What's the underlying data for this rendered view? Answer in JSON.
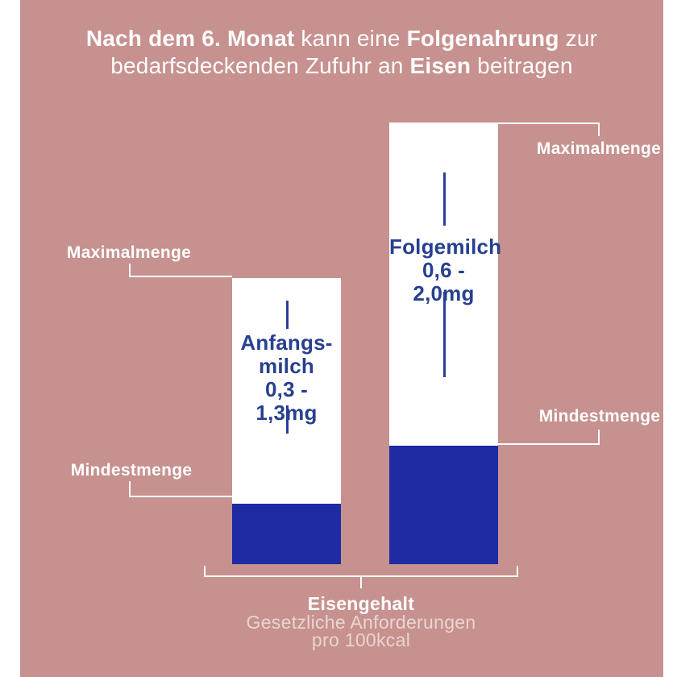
{
  "colors": {
    "panel_background": "#c6918e",
    "page_margin": "#ffffff",
    "bar_background": "#ffffff",
    "bar_fill_blue": "#1e2ba3",
    "bar_text_blue": "#27408f",
    "callout_text": "#ffffff",
    "footer_faded_text": "rgba(255,255,255,0.62)"
  },
  "title": {
    "l1_bold1": "Nach dem 6. Monat",
    "l1_reg1": " kann eine ",
    "l1_bold2": "Folgenahrung",
    "l1_reg2": " zur",
    "l2_reg1": "bedarfsdeckenden Zufuhr an ",
    "l2_bold1": "Eisen",
    "l2_reg2": " beitragen"
  },
  "bars": {
    "anfangsmilch": {
      "name_line1": "Anfangs-",
      "name_line2": "milch",
      "range": "0,3 - 1,3mg",
      "max_label": "Maximalmenge",
      "min_label": "Mindestmenge"
    },
    "folgemilch": {
      "name_line1": "Folgemilch",
      "range": "0,6 - 2,0mg",
      "max_label": "Maximalmenge",
      "min_label": "Mindestmenge"
    }
  },
  "footer": {
    "bold_line": "Eisengehalt",
    "line2": "Gesetzliche Anforderungen",
    "line3": "pro 100kcal"
  },
  "chart_data": {
    "type": "bar",
    "title": "Nach dem 6. Monat kann eine Folgenahrung zur bedarfsdeckenden Zufuhr an Eisen beitragen",
    "subtitle_footer": "Eisengehalt — Gesetzliche Anforderungen pro 100kcal",
    "categories": [
      "Anfangsmilch",
      "Folgemilch"
    ],
    "series": [
      {
        "name": "Mindestmenge",
        "values": [
          0.3,
          0.6
        ]
      },
      {
        "name": "Maximalmenge",
        "values": [
          1.3,
          2.0
        ]
      }
    ],
    "value_labels": [
      "0,3 - 1,3mg",
      "0,6 - 2,0mg"
    ],
    "unit": "mg pro 100kcal",
    "ylim": [
      0,
      2.0
    ],
    "grid": false,
    "legend_position": "callouts",
    "notes": "White bar height = Maximalmenge, dark blue lower segment = Mindestmenge"
  }
}
